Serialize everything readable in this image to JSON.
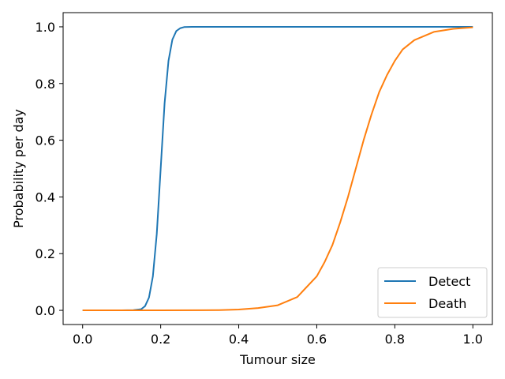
{
  "chart_data": {
    "type": "line",
    "title": "",
    "xlabel": "Tumour size",
    "ylabel": "Probability per day",
    "xlim": [
      -0.05,
      1.05
    ],
    "ylim": [
      -0.05,
      1.05
    ],
    "xticks": [
      0.0,
      0.2,
      0.4,
      0.6,
      0.8,
      1.0
    ],
    "xtick_labels": [
      "0.0",
      "0.2",
      "0.4",
      "0.6",
      "0.8",
      "1.0"
    ],
    "yticks": [
      0.0,
      0.2,
      0.4,
      0.6,
      0.8,
      1.0
    ],
    "ytick_labels": [
      "0.0",
      "0.2",
      "0.4",
      "0.6",
      "0.8",
      "1.0"
    ],
    "grid": false,
    "legend_position": "lower-right",
    "series": [
      {
        "name": "Detect",
        "color": "#1f77b4",
        "x": [
          0.0,
          0.1,
          0.13,
          0.15,
          0.16,
          0.17,
          0.18,
          0.19,
          0.2,
          0.21,
          0.22,
          0.23,
          0.24,
          0.25,
          0.26,
          0.28,
          0.3,
          0.5,
          0.7,
          1.0
        ],
        "y": [
          0.0,
          0.0,
          0.001,
          0.004,
          0.015,
          0.045,
          0.12,
          0.27,
          0.5,
          0.73,
          0.88,
          0.955,
          0.985,
          0.995,
          0.999,
          1.0,
          1.0,
          1.0,
          1.0,
          1.0
        ]
      },
      {
        "name": "Death",
        "color": "#ff7f0e",
        "x": [
          0.0,
          0.2,
          0.3,
          0.35,
          0.4,
          0.45,
          0.5,
          0.55,
          0.6,
          0.62,
          0.64,
          0.66,
          0.68,
          0.7,
          0.72,
          0.74,
          0.76,
          0.78,
          0.8,
          0.82,
          0.85,
          0.9,
          0.95,
          1.0
        ],
        "y": [
          0.0,
          0.0,
          0.0005,
          0.001,
          0.003,
          0.008,
          0.018,
          0.047,
          0.12,
          0.17,
          0.23,
          0.31,
          0.4,
          0.5,
          0.6,
          0.69,
          0.77,
          0.83,
          0.88,
          0.92,
          0.953,
          0.982,
          0.993,
          0.998
        ]
      }
    ]
  }
}
